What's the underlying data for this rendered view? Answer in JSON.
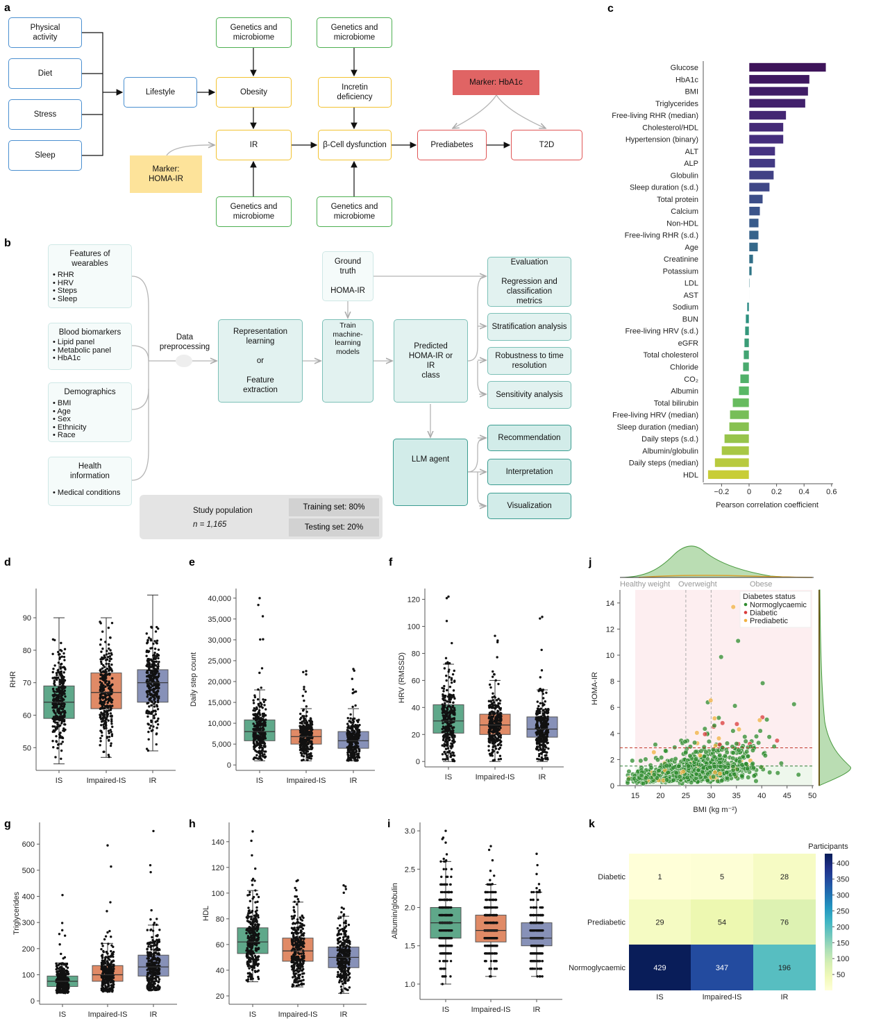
{
  "panel_labels": {
    "a": "a",
    "b": "b",
    "c": "c",
    "d": "d",
    "e": "e",
    "f": "f",
    "g": "g",
    "h": "h",
    "i": "i",
    "j": "j",
    "k": "k"
  },
  "diagram_a": {
    "physical_activity": "Physical\nactivity",
    "diet": "Diet",
    "stress": "Stress",
    "sleep": "Sleep",
    "lifestyle": "Lifestyle",
    "genetics_1": "Genetics and\nmicrobiome",
    "genetics_2": "Genetics and\nmicrobiome",
    "genetics_3": "Genetics and\nmicrobiome",
    "genetics_4": "Genetics and\nmicrobiome",
    "obesity": "Obesity",
    "ir": "IR",
    "incretin": "Incretin\ndeficiency",
    "beta_cell": "β-Cell dysfunction",
    "prediabetes": "Prediabetes",
    "t2d": "T2D",
    "marker_hba1c": "Marker: HbA1c",
    "marker_homa": "Marker:\nHOMA-IR"
  },
  "diagram_b": {
    "wearables": {
      "title": "Features of\nwearables",
      "items": [
        "RHR",
        "HRV",
        "Steps",
        "Sleep"
      ]
    },
    "biomarkers": {
      "title": "Blood biomarkers",
      "items": [
        "Lipid panel",
        "Metabolic panel",
        "HbA1c"
      ]
    },
    "demographics": {
      "title": "Demographics",
      "items": [
        "BMI",
        "Age",
        "Sex",
        "Ethnicity",
        "Race"
      ]
    },
    "health": {
      "title": "Health\ninformation",
      "items": [
        "Medical conditions"
      ]
    },
    "preprocessing": "Data\npreprocessing",
    "representation": "Representation\nlearning\n\nor\n\nFeature\nextraction",
    "ground_truth": "Ground\ntruth\n\nHOMA-IR",
    "train": "Train\nmachine-\nlearning\nmodels",
    "predicted": "Predicted\nHOMA-IR or\nIR\nclass",
    "evaluation": "Evaluation\n\nRegression and\nclassification\nmetrics",
    "stratification": "Stratification analysis",
    "robustness": "Robustness to time\nresolution",
    "sensitivity": "Sensitivity analysis",
    "llm": "LLM agent",
    "recommendation": "Recommendation",
    "interpretation": "Interpretation",
    "visualization": "Visualization",
    "study_population": "Study population",
    "n": "n = 1,165",
    "training": "Training set: 80%",
    "testing": "Testing set: 20%"
  },
  "colors": {
    "IS": "#5fa88a",
    "Impaired-IS": "#e08a66",
    "IR": "#8791b8",
    "normo": "#2e8b2e",
    "diabetic": "#d93a3a",
    "prediabetic": "#f0b040"
  },
  "chart_data": [
    {
      "id": "c",
      "type": "bar",
      "orientation": "horizontal",
      "xlabel": "Pearson correlation coefficient",
      "xlim": [
        -0.33,
        0.62
      ],
      "xticks": [
        "−0.2",
        "0",
        "0.2",
        "0.4",
        "0.6"
      ],
      "xtick_values": [
        -0.2,
        0,
        0.2,
        0.4,
        0.6
      ],
      "categories": [
        "Glucose",
        "HbA1c",
        "BMI",
        "Triglycerides",
        "Free-living RHR (median)",
        "Cholesterol/HDL",
        "Hypertension (binary)",
        "ALT",
        "ALP",
        "Globulin",
        "Sleep duration (s.d.)",
        "Total protein",
        "Calcium",
        "Non-HDL",
        "Free-living RHR (s.d.)",
        "Age",
        "Creatinine",
        "Potassium",
        "LDL",
        "AST",
        "Sodium",
        "BUN",
        "Free-living HRV (s.d.)",
        "eGFR",
        "Total cholesterol",
        "Chloride",
        "CO₂",
        "Albumin",
        "Total bilirubin",
        "Free-living HRV (median)",
        "Sleep duration (median)",
        "Daily steps (s.d.)",
        "Albumin/globulin",
        "Daily steps (median)",
        "HDL"
      ],
      "values": [
        0.56,
        0.44,
        0.43,
        0.41,
        0.27,
        0.25,
        0.25,
        0.19,
        0.19,
        0.18,
        0.15,
        0.1,
        0.08,
        0.07,
        0.07,
        0.065,
        0.03,
        0.02,
        0.005,
        0.0,
        -0.015,
        -0.025,
        -0.03,
        -0.035,
        -0.04,
        -0.045,
        -0.065,
        -0.075,
        -0.12,
        -0.14,
        -0.145,
        -0.18,
        -0.2,
        -0.25,
        -0.3
      ]
    },
    {
      "id": "d",
      "type": "box",
      "ylabel": "RHR",
      "ylim": [
        43,
        99
      ],
      "yticks": [
        50,
        60,
        70,
        80,
        90
      ],
      "categories": [
        "IS",
        "Impaired-IS",
        "IR"
      ],
      "boxes": [
        {
          "q1": 59,
          "median": 64,
          "q3": 69,
          "whislo": 45,
          "whishi": 90
        },
        {
          "q1": 62,
          "median": 67,
          "q3": 73,
          "whislo": 47,
          "whishi": 90
        },
        {
          "q1": 64,
          "median": 70,
          "q3": 74,
          "whislo": 49,
          "whishi": 97
        }
      ]
    },
    {
      "id": "e",
      "type": "box",
      "ylabel": "Daily step count",
      "ylim": [
        -1300,
        42300
      ],
      "yticks": [
        0,
        5000,
        10000,
        15000,
        20000,
        25000,
        30000,
        35000,
        40000
      ],
      "ytick_labels": [
        "0",
        "5,000",
        "10,000",
        "15,000",
        "20,000",
        "25,000",
        "30,000",
        "35,000",
        "40,000"
      ],
      "categories": [
        "IS",
        "Impaired-IS",
        "IR"
      ],
      "boxes": [
        {
          "q1": 5800,
          "median": 8000,
          "q3": 10800,
          "whislo": 1000,
          "whishi": 18000,
          "max": 40000
        },
        {
          "q1": 5000,
          "median": 6800,
          "q3": 8500,
          "whislo": 1000,
          "whishi": 13500,
          "max": 22500
        },
        {
          "q1": 4000,
          "median": 5800,
          "q3": 8000,
          "whislo": 1000,
          "whishi": 13500,
          "max": 23000
        }
      ]
    },
    {
      "id": "f",
      "type": "box",
      "ylabel": "HRV (RMSSD)",
      "ylim": [
        -4,
        128
      ],
      "yticks": [
        0,
        20,
        40,
        60,
        80,
        100,
        120
      ],
      "categories": [
        "IS",
        "Impaired-IS",
        "IR"
      ],
      "boxes": [
        {
          "q1": 21,
          "median": 30,
          "q3": 42,
          "whislo": 0,
          "whishi": 72,
          "max": 122
        },
        {
          "q1": 20,
          "median": 27,
          "q3": 35,
          "whislo": 0,
          "whishi": 60,
          "max": 93
        },
        {
          "q1": 18,
          "median": 24,
          "q3": 33,
          "whislo": 0,
          "whishi": 53,
          "max": 107
        }
      ]
    },
    {
      "id": "g",
      "type": "box",
      "ylabel": "Triglycerides",
      "ylim": [
        -13,
        683
      ],
      "yticks": [
        0,
        100,
        200,
        300,
        400,
        500,
        600
      ],
      "categories": [
        "IS",
        "Impaired-IS",
        "IR"
      ],
      "boxes": [
        {
          "q1": 55,
          "median": 75,
          "q3": 95,
          "whislo": 30,
          "whishi": 145,
          "max": 405
        },
        {
          "q1": 75,
          "median": 100,
          "q3": 135,
          "whislo": 35,
          "whishi": 220,
          "max": 595
        },
        {
          "q1": 95,
          "median": 130,
          "q3": 175,
          "whislo": 40,
          "whishi": 290,
          "max": 650
        }
      ]
    },
    {
      "id": "h",
      "type": "box",
      "ylabel": "HDL",
      "ylim": [
        13.5,
        155
      ],
      "yticks": [
        20,
        40,
        60,
        80,
        100,
        120,
        140
      ],
      "categories": [
        "IS",
        "Impaired-IS",
        "IR"
      ],
      "boxes": [
        {
          "q1": 53,
          "median": 62,
          "q3": 73,
          "whislo": 31,
          "whishi": 102,
          "max": 148
        },
        {
          "q1": 47,
          "median": 55,
          "q3": 65,
          "whislo": 27,
          "whishi": 93,
          "max": 110
        },
        {
          "q1": 42,
          "median": 50,
          "q3": 58,
          "whislo": 22,
          "whishi": 82,
          "max": 106
        }
      ]
    },
    {
      "id": "i",
      "type": "box",
      "ylabel": "Albumin/globulin",
      "ylim": [
        0.8,
        3.11
      ],
      "yticks": [
        1.0,
        1.5,
        2.0,
        2.5,
        3.0
      ],
      "ytick_labels": [
        "1.0",
        "1.5",
        "2.0",
        "2.5",
        "3.0"
      ],
      "categories": [
        "IS",
        "Impaired-IS",
        "IR"
      ],
      "boxes": [
        {
          "q1": 1.6,
          "median": 1.8,
          "q3": 2.0,
          "whislo": 1.0,
          "whishi": 2.6,
          "max": 3.0
        },
        {
          "q1": 1.55,
          "median": 1.7,
          "q3": 1.9,
          "whislo": 1.1,
          "whishi": 2.3,
          "max": 2.8
        },
        {
          "q1": 1.5,
          "median": 1.6,
          "q3": 1.8,
          "whislo": 1.1,
          "whishi": 2.2,
          "max": 2.7
        }
      ]
    },
    {
      "id": "j",
      "type": "scatter",
      "xlabel": "BMI (kg m⁻²)",
      "ylabel": "HOMA-IR",
      "xlim": [
        12,
        50
      ],
      "ylim": [
        0,
        15
      ],
      "xticks": [
        15,
        20,
        25,
        30,
        35,
        40,
        45,
        50
      ],
      "yticks": [
        0,
        2,
        4,
        6,
        8,
        10,
        12,
        14
      ],
      "bmi_categories": [
        "Healthy weight",
        "Overweight",
        "Obese"
      ],
      "bmi_cutoffs": [
        25,
        30
      ],
      "homa_thresholds": [
        1.5,
        2.9
      ],
      "legend_title": "Diabetes status",
      "legend": [
        "Normoglycaemic",
        "Diabetic",
        "Prediabetic"
      ],
      "legend_placement": "top-right",
      "n_points": 1165
    },
    {
      "id": "k",
      "type": "heatmap",
      "rows": [
        "Diabetic",
        "Prediabetic",
        "Normoglycaemic"
      ],
      "columns": [
        "IS",
        "Impaired-IS",
        "IR"
      ],
      "values": [
        [
          1,
          5,
          28
        ],
        [
          29,
          54,
          76
        ],
        [
          429,
          347,
          196
        ]
      ],
      "colorbar_label": "Participants",
      "colorbar_ticks": [
        50,
        100,
        150,
        200,
        250,
        300,
        350,
        400
      ],
      "vmin": 0,
      "vmax": 430
    }
  ]
}
